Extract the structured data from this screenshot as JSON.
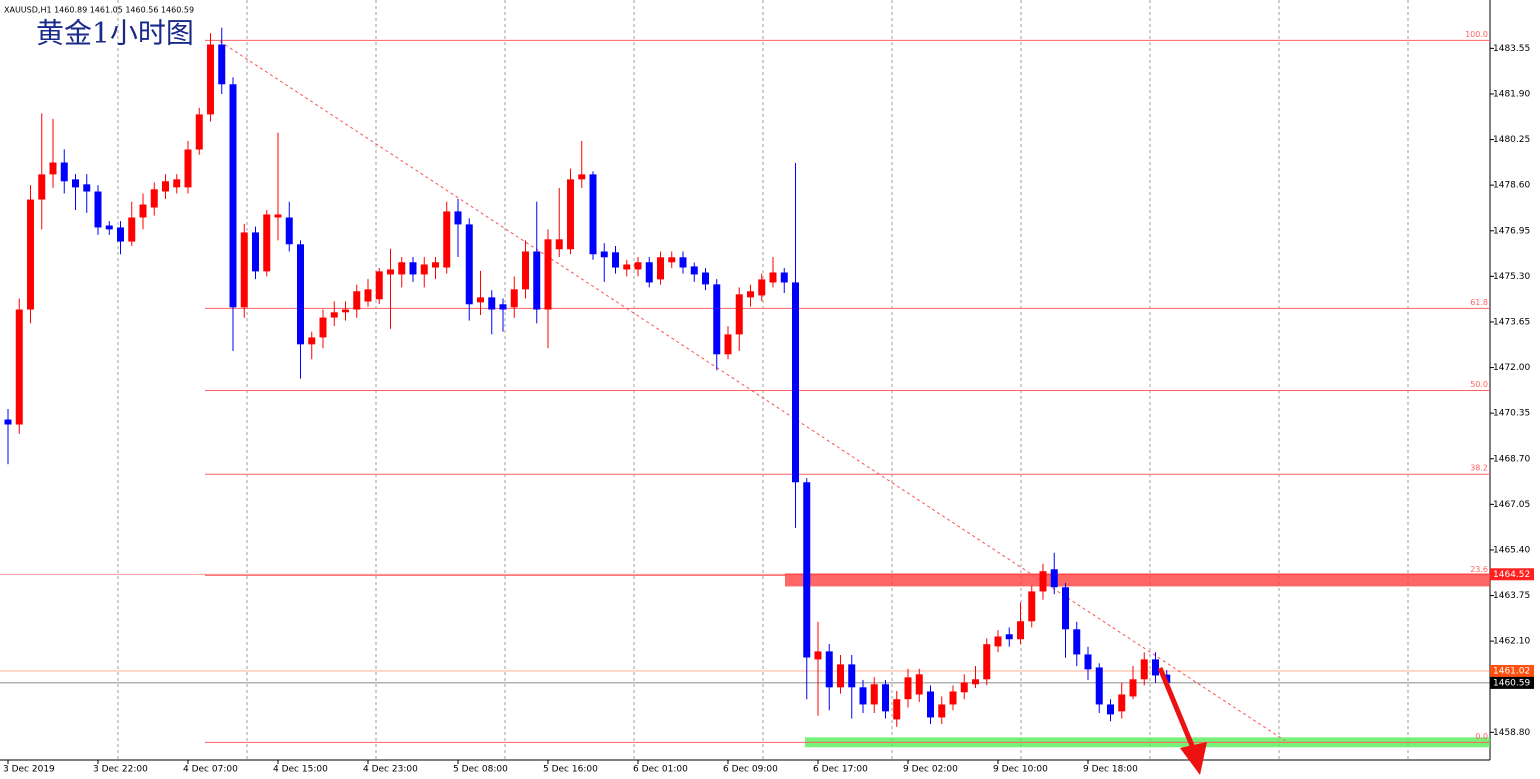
{
  "chart_data": {
    "type": "candlestick",
    "title": "黄金1小时图",
    "symbol_info": "XAUUSD,H1  1460.89 1461.05 1460.56 1460.59",
    "categories": [
      "3 Dec 2019",
      null,
      null,
      null,
      null,
      null,
      null,
      null,
      "3 Dec 22:00",
      null,
      null,
      null,
      null,
      null,
      null,
      null,
      "4 Dec 07:00",
      null,
      null,
      null,
      null,
      null,
      null,
      null,
      "4 Dec 15:00",
      null,
      null,
      null,
      null,
      null,
      null,
      null,
      "4 Dec 23:00",
      null,
      null,
      null,
      null,
      null,
      null,
      null,
      "5 Dec 08:00",
      null,
      null,
      null,
      null,
      null,
      null,
      null,
      "5 Dec 16:00",
      null,
      null,
      null,
      null,
      null,
      null,
      null,
      "6 Dec 01:00",
      null,
      null,
      null,
      null,
      null,
      null,
      null,
      "6 Dec 09:00",
      null,
      null,
      null,
      null,
      null,
      null,
      null,
      "6 Dec 17:00",
      null,
      null,
      null,
      null,
      null,
      null,
      null,
      "9 Dec 02:00",
      null,
      null,
      null,
      null,
      null,
      null,
      null,
      "9 Dec 10:00",
      null,
      null,
      null,
      null,
      null,
      null,
      null,
      "9 Dec 18:00",
      null,
      null,
      null,
      null,
      null,
      null,
      null
    ],
    "open": [
      1470.12,
      1469.94,
      1474.1,
      1478.08,
      1478.99,
      1479.42,
      1478.81,
      1478.63,
      1478.37,
      1477.14,
      1477.07,
      1476.56,
      1477.43,
      1477.79,
      1478.37,
      1478.52,
      1478.52,
      1479.89,
      1481.16,
      1483.69,
      1482.25,
      1474.18,
      1476.89,
      1475.48,
      1477.43,
      1477.43,
      1476.46,
      1472.84,
      1473.09,
      1473.81,
      1474.0,
      1474.1,
      1474.39,
      1474.47,
      1475.37,
      1475.37,
      1475.81,
      1475.37,
      1475.62,
      1475.62,
      1477.65,
      1477.18,
      1474.36,
      1474.54,
      1474.29,
      1474.18,
      1474.83,
      1476.2,
      1474.1,
      1476.28,
      1476.28,
      1478.81,
      1478.99,
      1476.2,
      1476.17,
      1475.55,
      1475.55,
      1475.81,
      1475.19,
      1475.81,
      1475.99,
      1475.66,
      1475.44,
      1475.01,
      1472.48,
      1473.2,
      1474.54,
      1474.61,
      1475.08,
      1475.44,
      1475.08,
      1467.85,
      1461.44,
      1461.73,
      1460.43,
      1461.26,
      1460.43,
      1459.81,
      1460.54,
      1459.27,
      1460.0,
      1460.17,
      1460.28,
      1459.34,
      1459.81,
      1460.25,
      1460.54,
      1460.72,
      1461.91,
      1462.35,
      1462.17,
      1462.82,
      1463.9,
      1464.7,
      1464.05,
      1462.53,
      1461.62,
      1461.15,
      1459.81,
      1459.56,
      1460.1,
      1460.72,
      1461.44,
      1460.89
    ],
    "high": [
      1470.5,
      1474.5,
      1478.6,
      1481.2,
      1481.0,
      1479.9,
      1479.0,
      1479.0,
      1478.6,
      1477.3,
      1477.3,
      1478.0,
      1478.3,
      1478.7,
      1479.0,
      1479.0,
      1480.2,
      1481.4,
      1484.1,
      1484.3,
      1482.5,
      1477.2,
      1477.1,
      1477.7,
      1480.5,
      1478.0,
      1476.6,
      1473.3,
      1474.1,
      1474.4,
      1474.4,
      1475.0,
      1475.2,
      1475.6,
      1476.3,
      1476.0,
      1476.0,
      1476.0,
      1476.0,
      1478.0,
      1478.1,
      1477.4,
      1475.5,
      1474.8,
      1474.5,
      1475.3,
      1476.6,
      1478.0,
      1477.0,
      1478.5,
      1479.2,
      1480.2,
      1479.1,
      1476.5,
      1476.4,
      1475.9,
      1476.0,
      1476.0,
      1476.2,
      1476.2,
      1476.2,
      1475.8,
      1475.6,
      1475.2,
      1473.5,
      1474.9,
      1475.0,
      1475.4,
      1476.0,
      1475.6,
      1479.4,
      1468.0,
      1462.8,
      1462.0,
      1461.6,
      1461.6,
      1460.7,
      1460.8,
      1460.7,
      1460.3,
      1461.1,
      1461.1,
      1460.5,
      1460.1,
      1460.5,
      1460.9,
      1461.2,
      1462.2,
      1462.5,
      1462.6,
      1463.5,
      1464.1,
      1464.9,
      1465.3,
      1464.2,
      1462.8,
      1461.9,
      1461.3,
      1460.0,
      1460.6,
      1461.2,
      1461.7,
      1461.7,
      1461.05
    ],
    "low": [
      1468.5,
      1469.6,
      1473.6,
      1477.0,
      1478.5,
      1478.3,
      1477.7,
      1477.6,
      1476.8,
      1476.8,
      1476.1,
      1476.4,
      1477.0,
      1477.5,
      1478.1,
      1478.3,
      1478.3,
      1479.7,
      1480.9,
      1481.9,
      1472.6,
      1473.8,
      1475.2,
      1475.3,
      1476.6,
      1476.2,
      1471.6,
      1472.3,
      1472.7,
      1473.5,
      1473.7,
      1473.8,
      1474.2,
      1474.3,
      1473.4,
      1474.9,
      1475.1,
      1474.9,
      1475.2,
      1475.4,
      1476.0,
      1473.7,
      1473.9,
      1473.2,
      1473.3,
      1473.8,
      1474.5,
      1473.6,
      1472.7,
      1476.0,
      1476.1,
      1478.5,
      1475.9,
      1475.1,
      1475.4,
      1475.3,
      1475.3,
      1474.9,
      1475.0,
      1475.6,
      1475.4,
      1475.1,
      1474.8,
      1471.9,
      1472.3,
      1472.6,
      1474.2,
      1474.4,
      1474.9,
      1474.7,
      1466.2,
      1460.0,
      1459.4,
      1459.6,
      1460.2,
      1459.3,
      1459.5,
      1459.5,
      1459.3,
      1459.0,
      1459.7,
      1459.9,
      1459.1,
      1459.1,
      1459.6,
      1460.0,
      1460.4,
      1460.5,
      1461.7,
      1461.9,
      1462.0,
      1462.6,
      1463.6,
      1463.8,
      1461.5,
      1461.2,
      1460.7,
      1459.5,
      1459.2,
      1459.3,
      1460.0,
      1460.5,
      1460.6,
      1460.56
    ],
    "close": [
      1469.94,
      1474.1,
      1478.08,
      1478.99,
      1479.42,
      1478.74,
      1478.52,
      1478.37,
      1477.07,
      1477.0,
      1476.56,
      1477.43,
      1477.9,
      1478.45,
      1478.74,
      1478.81,
      1479.89,
      1481.16,
      1483.69,
      1482.25,
      1474.18,
      1476.89,
      1475.48,
      1477.54,
      1477.54,
      1476.46,
      1472.84,
      1473.09,
      1473.81,
      1474.0,
      1474.1,
      1474.76,
      1474.83,
      1475.48,
      1475.55,
      1475.81,
      1475.37,
      1475.73,
      1475.81,
      1477.65,
      1477.18,
      1474.29,
      1474.54,
      1474.1,
      1474.1,
      1474.83,
      1476.2,
      1474.1,
      1476.64,
      1476.64,
      1478.81,
      1478.99,
      1476.1,
      1475.99,
      1475.62,
      1475.73,
      1475.81,
      1475.08,
      1475.99,
      1475.99,
      1475.62,
      1475.37,
      1475.01,
      1472.48,
      1473.2,
      1474.65,
      1474.76,
      1475.19,
      1475.44,
      1475.08,
      1467.85,
      1461.51,
      1461.73,
      1460.43,
      1461.26,
      1460.43,
      1459.81,
      1460.54,
      1459.56,
      1460.0,
      1460.79,
      1460.9,
      1459.34,
      1459.81,
      1460.28,
      1460.61,
      1460.72,
      1461.99,
      1462.27,
      1462.17,
      1462.82,
      1463.9,
      1464.63,
      1464.05,
      1462.53,
      1461.62,
      1461.08,
      1459.81,
      1459.45,
      1460.17,
      1460.72,
      1461.44,
      1460.86,
      1460.59
    ],
    "up_color": "#ff0000",
    "down_color": "#0000ff",
    "ylim": [
      1457.8,
      1485.3
    ],
    "yticks": [
      {
        "value": 1483.55,
        "label": "1483.55"
      },
      {
        "value": 1481.9,
        "label": "1481.90"
      },
      {
        "value": 1480.25,
        "label": "1480.25"
      },
      {
        "value": 1478.6,
        "label": "1478.60"
      },
      {
        "value": 1476.95,
        "label": "1476.95"
      },
      {
        "value": 1475.3,
        "label": "1475.30"
      },
      {
        "value": 1473.65,
        "label": "1473.65"
      },
      {
        "value": 1472,
        "label": "1472.00"
      },
      {
        "value": 1470.35,
        "label": "1470.35"
      },
      {
        "value": 1468.7,
        "label": "1468.70"
      },
      {
        "value": 1467.05,
        "label": "1467.05"
      },
      {
        "value": 1465.4,
        "label": "1465.40"
      },
      {
        "value": 1463.75,
        "label": "1463.75"
      },
      {
        "value": 1462.1,
        "label": "1462.10"
      },
      {
        "value": 1458.8,
        "label": "1458.80"
      }
    ],
    "fib_levels": [
      {
        "label": "100.0",
        "value": 1483.84
      },
      {
        "label": "61.8",
        "value": 1474.14
      },
      {
        "label": "50.0",
        "value": 1471.17
      },
      {
        "label": "38.2",
        "value": 1468.14
      },
      {
        "label": "23.6",
        "value": 1464.48
      },
      {
        "label": "0.0",
        "value": 1458.44
      }
    ],
    "fib_color": "#ff6060",
    "zones": [
      {
        "from": 1464.08,
        "to": 1464.55,
        "color": "#ff4040"
      },
      {
        "from": 1458.26,
        "to": 1458.62,
        "color": "#55ee55"
      }
    ],
    "price_markers": [
      {
        "value": 1464.52,
        "color": "#ff2020"
      },
      {
        "value": 1461.02,
        "color": "#ff5010"
      },
      {
        "value": 1460.59,
        "color": "#000000"
      }
    ],
    "trend_line": {
      "from": 1483.8,
      "to": 1458.5,
      "color": "#ff5050"
    }
  }
}
